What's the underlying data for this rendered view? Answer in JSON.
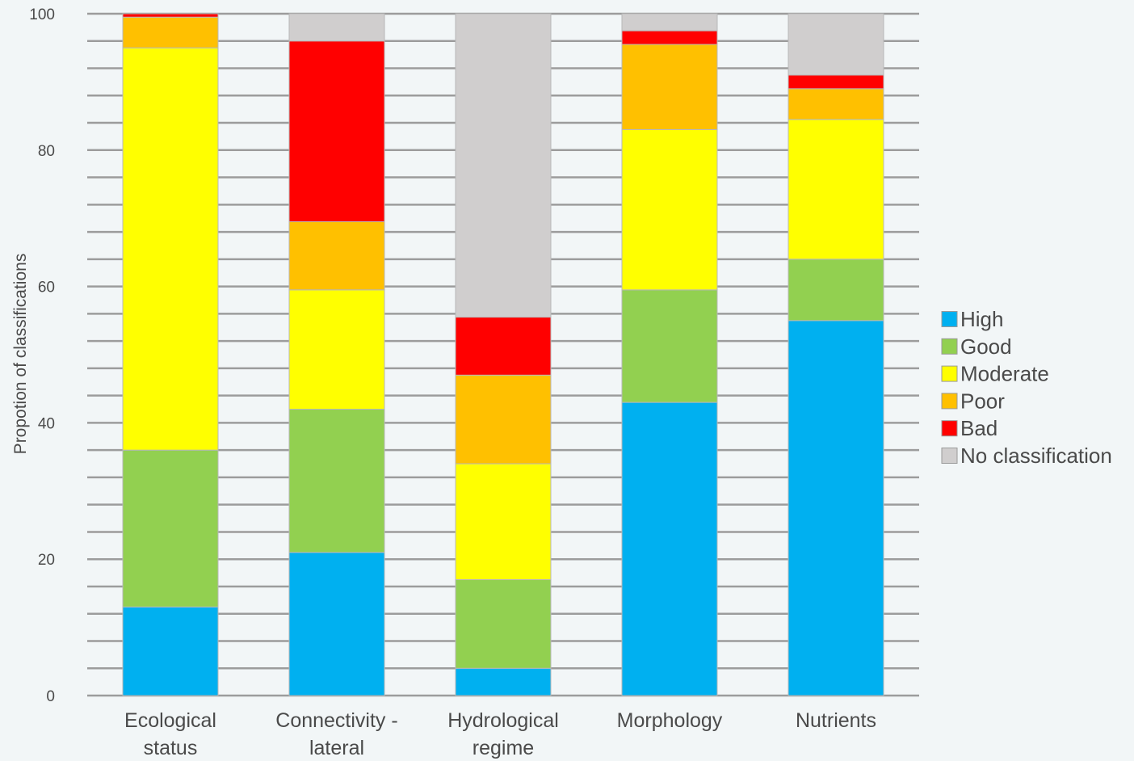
{
  "chart_data": {
    "type": "bar",
    "stacked": true,
    "title": "",
    "xlabel": "",
    "ylabel": "Propotion of classifications",
    "ylim": [
      0,
      100
    ],
    "yticks": [
      0,
      20,
      40,
      60,
      80,
      100
    ],
    "grid": true,
    "legend_position": "right",
    "categories": [
      [
        "Ecological",
        "status"
      ],
      [
        "Connectivity -",
        "lateral"
      ],
      [
        "Hydrological",
        "regime"
      ],
      [
        "Morphology"
      ],
      [
        "Nutrients"
      ]
    ],
    "series": [
      {
        "name": "High",
        "color": "#00b0f0",
        "values": [
          13,
          21,
          4,
          43,
          55
        ]
      },
      {
        "name": "Good",
        "color": "#92d050",
        "values": [
          23,
          21,
          13,
          16.5,
          9
        ]
      },
      {
        "name": "Moderate",
        "color": "#ffff00",
        "values": [
          59,
          17.5,
          17,
          23.5,
          20.5
        ]
      },
      {
        "name": "Poor",
        "color": "#ffc000",
        "values": [
          4.5,
          10,
          13,
          12.5,
          4.5
        ]
      },
      {
        "name": "Bad",
        "color": "#ff0000",
        "values": [
          0.5,
          26.5,
          8.5,
          2,
          2
        ]
      },
      {
        "name": "No classification",
        "color": "#d0cece",
        "values": [
          0,
          4,
          44.5,
          2.5,
          9
        ]
      }
    ]
  }
}
